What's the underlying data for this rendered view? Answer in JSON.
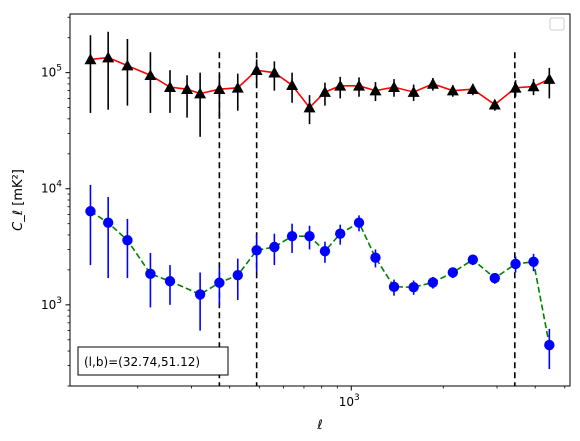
{
  "chart_data": {
    "type": "scatter",
    "xscale": "log",
    "yscale": "log",
    "xlim": [
      120,
      5200
    ],
    "ylim": [
      200,
      320000
    ],
    "xlabel": "ℓ",
    "ylabel": "C_ℓ  [mK²]",
    "x_tick_labels": [
      {
        "value": 1000,
        "base": "10",
        "exp": "3"
      }
    ],
    "y_tick_labels": [
      {
        "value": 1000,
        "base": "10",
        "exp": "3"
      },
      {
        "value": 10000,
        "base": "10",
        "exp": "4"
      },
      {
        "value": 100000,
        "base": "10",
        "exp": "5"
      }
    ],
    "vlines": [
      370,
      490,
      3430
    ],
    "annotation": "(l,b)=(32.74,51.12)",
    "legend": "top-right (empty)",
    "series": [
      {
        "style": "triangle-markers-solid-line",
        "color": "#000000",
        "line_color": "#ff0000",
        "points": [
          {
            "x": 140,
            "y": 130000,
            "err": [
              45000,
              210000
            ]
          },
          {
            "x": 160,
            "y": 135000,
            "err": [
              48000,
              225000
            ]
          },
          {
            "x": 185,
            "y": 115000,
            "err": [
              52000,
              195000
            ]
          },
          {
            "x": 220,
            "y": 95000,
            "err": [
              45000,
              150000
            ]
          },
          {
            "x": 255,
            "y": 75000,
            "err": [
              45000,
              105000
            ]
          },
          {
            "x": 290,
            "y": 72000,
            "err": [
              41000,
              95000
            ]
          },
          {
            "x": 320,
            "y": 66000,
            "err": [
              28000,
              100000
            ]
          },
          {
            "x": 370,
            "y": 72000,
            "err": [
              40000,
              95000
            ]
          },
          {
            "x": 425,
            "y": 74000,
            "err": [
              47000,
              98000
            ]
          },
          {
            "x": 490,
            "y": 105000,
            "err": [
              75000,
              130000
            ]
          },
          {
            "x": 560,
            "y": 100000,
            "err": [
              70000,
              125000
            ]
          },
          {
            "x": 640,
            "y": 78000,
            "err": [
              55000,
              100000
            ]
          },
          {
            "x": 730,
            "y": 50000,
            "err": [
              36000,
              64000
            ]
          },
          {
            "x": 820,
            "y": 68000,
            "err": [
              52000,
              82000
            ]
          },
          {
            "x": 920,
            "y": 77000,
            "err": [
              60000,
              92000
            ]
          },
          {
            "x": 1060,
            "y": 77000,
            "err": [
              62000,
              91000
            ]
          },
          {
            "x": 1200,
            "y": 70000,
            "err": [
              57000,
              83000
            ]
          },
          {
            "x": 1380,
            "y": 75000,
            "err": [
              62000,
              88000
            ]
          },
          {
            "x": 1600,
            "y": 68000,
            "err": [
              57000,
              79000
            ]
          },
          {
            "x": 1850,
            "y": 80000,
            "err": [
              70000,
              90000
            ]
          },
          {
            "x": 2150,
            "y": 70000,
            "err": [
              62000,
              78000
            ]
          },
          {
            "x": 2500,
            "y": 72000,
            "err": [
              64000,
              80000
            ]
          },
          {
            "x": 2950,
            "y": 53000,
            "err": [
              47000,
              58000
            ]
          },
          {
            "x": 3450,
            "y": 74000,
            "err": [
              62000,
              86000
            ]
          },
          {
            "x": 3950,
            "y": 76000,
            "err": [
              64000,
              88000
            ]
          },
          {
            "x": 4450,
            "y": 88000,
            "err": [
              60000,
              110000
            ]
          }
        ]
      },
      {
        "style": "circle-markers-dashed-line",
        "color": "#0000ff",
        "line_color": "#008000",
        "points": [
          {
            "x": 140,
            "y": 6400,
            "err": [
              2200,
              10800
            ]
          },
          {
            "x": 160,
            "y": 5100,
            "err": [
              1700,
              8500
            ]
          },
          {
            "x": 185,
            "y": 3600,
            "err": [
              1700,
              5500
            ]
          },
          {
            "x": 220,
            "y": 1850,
            "err": [
              950,
              2800
            ]
          },
          {
            "x": 255,
            "y": 1600,
            "err": [
              1000,
              2200
            ]
          },
          {
            "x": 320,
            "y": 1230,
            "err": [
              600,
              1900
            ]
          },
          {
            "x": 370,
            "y": 1550,
            "err": [
              1000,
              2100
            ]
          },
          {
            "x": 425,
            "y": 1800,
            "err": [
              1100,
              2500
            ]
          },
          {
            "x": 490,
            "y": 2950,
            "err": [
              1900,
              4000
            ]
          },
          {
            "x": 560,
            "y": 3150,
            "err": [
              2200,
              4100
            ]
          },
          {
            "x": 640,
            "y": 3900,
            "err": [
              2800,
              5000
            ]
          },
          {
            "x": 730,
            "y": 3900,
            "err": [
              3000,
              4800
            ]
          },
          {
            "x": 820,
            "y": 2900,
            "err": [
              2300,
              3500
            ]
          },
          {
            "x": 920,
            "y": 4100,
            "err": [
              3300,
              4900
            ]
          },
          {
            "x": 1060,
            "y": 5100,
            "err": [
              4300,
              5900
            ]
          },
          {
            "x": 1200,
            "y": 2550,
            "err": [
              2100,
              3000
            ]
          },
          {
            "x": 1380,
            "y": 1430,
            "err": [
              1200,
              1650
            ]
          },
          {
            "x": 1600,
            "y": 1420,
            "err": [
              1220,
              1620
            ]
          },
          {
            "x": 1850,
            "y": 1560,
            "err": [
              1380,
              1740
            ]
          },
          {
            "x": 2150,
            "y": 1900,
            "err": [
              1700,
              2100
            ]
          },
          {
            "x": 2500,
            "y": 2450,
            "err": [
              2200,
              2700
            ]
          },
          {
            "x": 2950,
            "y": 1700,
            "err": [
              1520,
              1880
            ]
          },
          {
            "x": 3450,
            "y": 2250,
            "err": [
              1900,
              2600
            ]
          },
          {
            "x": 3950,
            "y": 2350,
            "err": [
              1950,
              2750
            ]
          },
          {
            "x": 4450,
            "y": 450,
            "err": [
              280,
              620
            ]
          }
        ]
      }
    ]
  }
}
